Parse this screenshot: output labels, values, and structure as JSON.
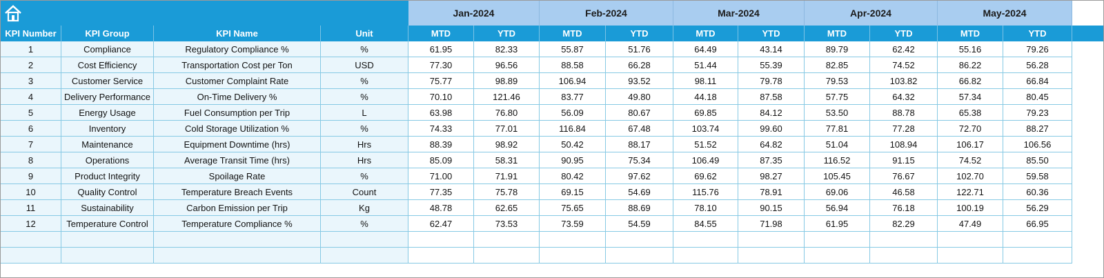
{
  "header": {
    "months": [
      "Jan-2024",
      "Feb-2024",
      "Mar-2024",
      "Apr-2024",
      "May-2024"
    ],
    "left_columns": [
      "KPI Number",
      "KPI Group",
      "KPI Name",
      "Unit"
    ],
    "sub_columns": [
      "MTD",
      "YTD"
    ]
  },
  "table": {
    "rows": [
      {
        "kpi_number": "1",
        "kpi_group": "Compliance",
        "kpi_name": "Regulatory Compliance %",
        "unit": "%",
        "values": [
          "61.95",
          "82.33",
          "55.87",
          "51.76",
          "64.49",
          "43.14",
          "89.79",
          "62.42",
          "55.16",
          "79.26"
        ]
      },
      {
        "kpi_number": "2",
        "kpi_group": "Cost Efficiency",
        "kpi_name": "Transportation Cost per Ton",
        "unit": "USD",
        "values": [
          "77.30",
          "96.56",
          "88.58",
          "66.28",
          "51.44",
          "55.39",
          "82.85",
          "74.52",
          "86.22",
          "56.28"
        ]
      },
      {
        "kpi_number": "3",
        "kpi_group": "Customer Service",
        "kpi_name": "Customer Complaint Rate",
        "unit": "%",
        "values": [
          "75.77",
          "98.89",
          "106.94",
          "93.52",
          "98.11",
          "79.78",
          "79.53",
          "103.82",
          "66.82",
          "66.84"
        ]
      },
      {
        "kpi_number": "4",
        "kpi_group": "Delivery Performance",
        "kpi_name": "On-Time Delivery %",
        "unit": "%",
        "values": [
          "70.10",
          "121.46",
          "83.77",
          "49.80",
          "44.18",
          "87.58",
          "57.75",
          "64.32",
          "57.34",
          "80.45"
        ]
      },
      {
        "kpi_number": "5",
        "kpi_group": "Energy Usage",
        "kpi_name": "Fuel Consumption per Trip",
        "unit": "L",
        "values": [
          "63.98",
          "76.80",
          "56.09",
          "80.67",
          "69.85",
          "84.12",
          "53.50",
          "88.78",
          "65.38",
          "79.23"
        ]
      },
      {
        "kpi_number": "6",
        "kpi_group": "Inventory",
        "kpi_name": "Cold Storage Utilization %",
        "unit": "%",
        "values": [
          "74.33",
          "77.01",
          "116.84",
          "67.48",
          "103.74",
          "99.60",
          "77.81",
          "77.28",
          "72.70",
          "88.27"
        ]
      },
      {
        "kpi_number": "7",
        "kpi_group": "Maintenance",
        "kpi_name": "Equipment Downtime (hrs)",
        "unit": "Hrs",
        "values": [
          "88.39",
          "98.92",
          "50.42",
          "88.17",
          "51.52",
          "64.82",
          "51.04",
          "108.94",
          "106.17",
          "106.56"
        ]
      },
      {
        "kpi_number": "8",
        "kpi_group": "Operations",
        "kpi_name": "Average Transit Time (hrs)",
        "unit": "Hrs",
        "values": [
          "85.09",
          "58.31",
          "90.95",
          "75.34",
          "106.49",
          "87.35",
          "116.52",
          "91.15",
          "74.52",
          "85.50"
        ]
      },
      {
        "kpi_number": "9",
        "kpi_group": "Product Integrity",
        "kpi_name": "Spoilage Rate",
        "unit": "%",
        "values": [
          "71.00",
          "71.91",
          "80.42",
          "97.62",
          "69.62",
          "98.27",
          "105.45",
          "76.67",
          "102.70",
          "59.58"
        ]
      },
      {
        "kpi_number": "10",
        "kpi_group": "Quality Control",
        "kpi_name": "Temperature Breach Events",
        "unit": "Count",
        "values": [
          "77.35",
          "75.78",
          "69.15",
          "54.69",
          "115.76",
          "78.91",
          "69.06",
          "46.58",
          "122.71",
          "60.36"
        ]
      },
      {
        "kpi_number": "11",
        "kpi_group": "Sustainability",
        "kpi_name": "Carbon Emission per Trip",
        "unit": "Kg",
        "values": [
          "48.78",
          "62.65",
          "75.65",
          "88.69",
          "78.10",
          "90.15",
          "56.94",
          "76.18",
          "100.19",
          "56.29"
        ]
      },
      {
        "kpi_number": "12",
        "kpi_group": "Temperature Control",
        "kpi_name": "Temperature Compliance %",
        "unit": "%",
        "values": [
          "62.47",
          "73.53",
          "73.59",
          "54.59",
          "84.55",
          "71.98",
          "61.95",
          "82.29",
          "47.49",
          "66.95"
        ]
      }
    ]
  }
}
